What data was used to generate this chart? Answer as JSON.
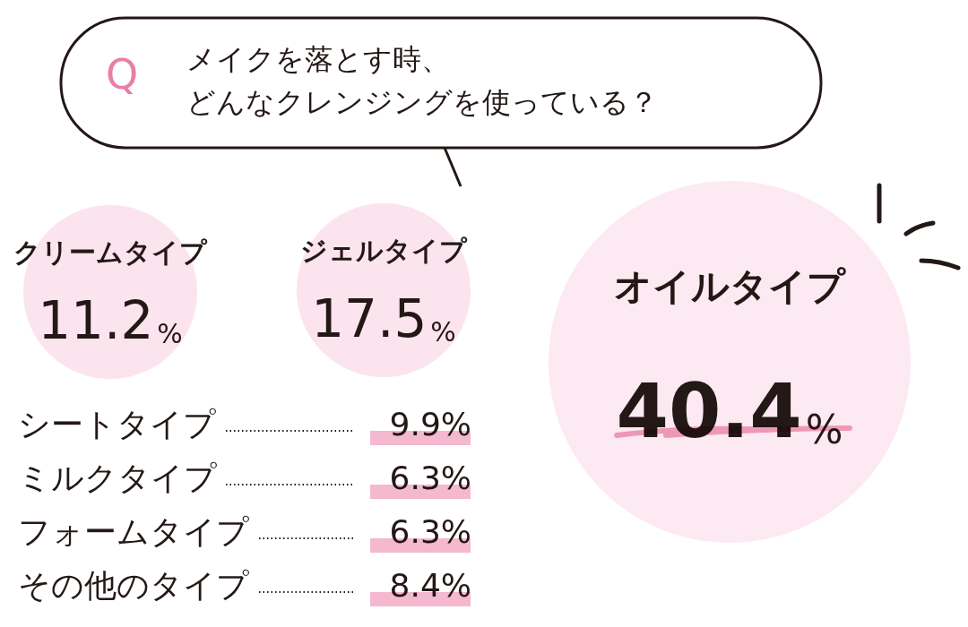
{
  "chart_data": {
    "type": "other",
    "title": "メイクを落とす時、",
    "subtitle": "どんなクレンジングを使っている？",
    "annotations": [
      "Q"
    ],
    "categories": [
      "クリームタイプ",
      "ジェルタイプ",
      "オイルタイプ",
      "シートタイプ",
      "ミルクタイプ",
      "フォームタイプ",
      "その他のタイプ"
    ],
    "values": [
      11.2,
      17.5,
      40.4,
      9.9,
      6.3,
      6.3,
      8.4
    ],
    "value_labels": [
      "11.2%",
      "17.5%",
      "40.4%",
      "9.9%",
      "6.3%",
      "6.3%",
      "8.4%"
    ],
    "colors": [
      "#fbe4ee",
      "#fbe4ee",
      "#fce9f1",
      "#f4b8cf",
      "#f4b8cf",
      "#f4b8cf",
      "#f4b8cf"
    ]
  }
}
